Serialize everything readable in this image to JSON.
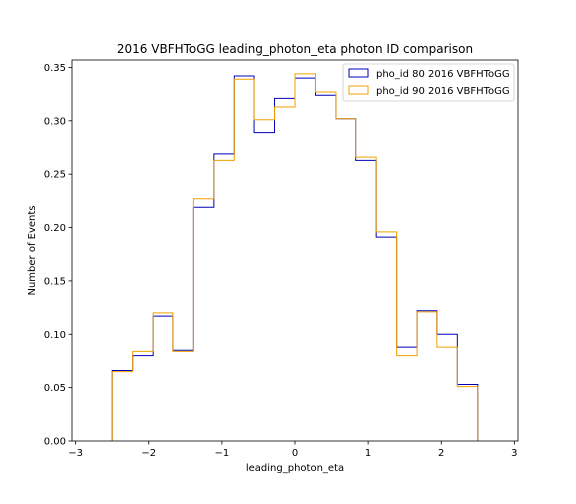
{
  "chart_data": {
    "type": "step-histogram",
    "title": "2016 VBFHToGG leading_photon_eta photon ID comparison",
    "xlabel": "leading_photon_eta",
    "ylabel": "Number of Events",
    "xlim": [
      -3.05,
      3.05
    ],
    "ylim": [
      0,
      0.357
    ],
    "xticks": [
      -3,
      -2,
      -1,
      0,
      1,
      2,
      3
    ],
    "xtick_labels": [
      "−3",
      "−2",
      "−1",
      "0",
      "1",
      "2",
      "3"
    ],
    "yticks": [
      0.0,
      0.05,
      0.1,
      0.15,
      0.2,
      0.25,
      0.3,
      0.35
    ],
    "ytick_labels": [
      "0.00",
      "0.05",
      "0.10",
      "0.15",
      "0.20",
      "0.25",
      "0.30",
      "0.35"
    ],
    "bin_edges": [
      -2.5,
      -2.22,
      -1.94,
      -1.67,
      -1.39,
      -1.11,
      -0.83,
      -0.56,
      -0.28,
      0.0,
      0.28,
      0.56,
      0.83,
      1.11,
      1.39,
      1.67,
      1.94,
      2.22,
      2.5
    ],
    "grid": false,
    "legend_position": "top-right",
    "series": [
      {
        "name": "pho_id 80 2016 VBFHToGG",
        "color": "#0000bb",
        "values": [
          0.066,
          0.08,
          0.117,
          0.085,
          0.219,
          0.269,
          0.342,
          0.289,
          0.321,
          0.34,
          0.324,
          0.302,
          0.263,
          0.191,
          0.088,
          0.122,
          0.1,
          0.053
        ]
      },
      {
        "name": "pho_id 90 2016 VBFHToGG",
        "color": "#f0a000",
        "values": [
          0.065,
          0.084,
          0.12,
          0.084,
          0.227,
          0.263,
          0.339,
          0.301,
          0.313,
          0.344,
          0.327,
          0.302,
          0.266,
          0.196,
          0.08,
          0.121,
          0.088,
          0.051
        ]
      }
    ]
  }
}
